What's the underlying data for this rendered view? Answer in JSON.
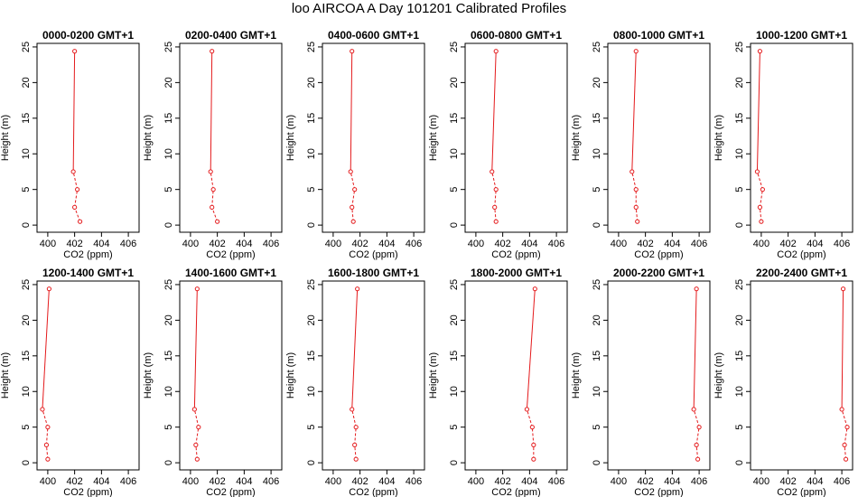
{
  "figure_title": "loo AIRCOA A  Day 101201  Calibrated Profiles",
  "colors": {
    "line": "#e41a1c",
    "axis": "#000000"
  },
  "chart_data": [
    {
      "type": "line",
      "title": "0000-0200 GMT+1",
      "xlabel": "CO2 (ppm)",
      "ylabel": "Height (m)",
      "xlim": [
        399.2,
        406.8
      ],
      "ylim": [
        -1,
        25.5
      ],
      "xticks": [
        "400",
        "402",
        "404",
        "406"
      ],
      "yticks": [
        "0",
        "5",
        "10",
        "15",
        "20",
        "25"
      ],
      "x": [
        402.4,
        402.0,
        402.2,
        401.9,
        402.0
      ],
      "y": [
        0.5,
        2.5,
        5,
        7.5,
        24.4
      ]
    },
    {
      "type": "line",
      "title": "0200-0400 GMT+1",
      "xlabel": "CO2 (ppm)",
      "ylabel": "Height (m)",
      "xlim": [
        399.2,
        406.8
      ],
      "ylim": [
        -1,
        25.5
      ],
      "xticks": [
        "400",
        "402",
        "404",
        "406"
      ],
      "yticks": [
        "0",
        "5",
        "10",
        "15",
        "20",
        "25"
      ],
      "x": [
        402.0,
        401.6,
        401.7,
        401.5,
        401.6
      ],
      "y": [
        0.5,
        2.5,
        5,
        7.5,
        24.4
      ]
    },
    {
      "type": "line",
      "title": "0400-0600 GMT+1",
      "xlabel": "CO2 (ppm)",
      "ylabel": "Height (m)",
      "xlim": [
        399.2,
        406.8
      ],
      "ylim": [
        -1,
        25.5
      ],
      "xticks": [
        "400",
        "402",
        "404",
        "406"
      ],
      "yticks": [
        "0",
        "5",
        "10",
        "15",
        "20",
        "25"
      ],
      "x": [
        401.5,
        401.4,
        401.6,
        401.3,
        401.4
      ],
      "y": [
        0.5,
        2.5,
        5,
        7.5,
        24.4
      ]
    },
    {
      "type": "line",
      "title": "0600-0800 GMT+1",
      "xlabel": "CO2 (ppm)",
      "ylabel": "Height (m)",
      "xlim": [
        399.2,
        406.8
      ],
      "ylim": [
        -1,
        25.5
      ],
      "xticks": [
        "400",
        "402",
        "404",
        "406"
      ],
      "yticks": [
        "0",
        "5",
        "10",
        "15",
        "20",
        "25"
      ],
      "x": [
        401.5,
        401.4,
        401.5,
        401.2,
        401.5
      ],
      "y": [
        0.5,
        2.5,
        5,
        7.5,
        24.4
      ]
    },
    {
      "type": "line",
      "title": "0800-1000 GMT+1",
      "xlabel": "CO2 (ppm)",
      "ylabel": "Height (m)",
      "xlim": [
        399.2,
        406.8
      ],
      "ylim": [
        -1,
        25.5
      ],
      "xticks": [
        "400",
        "402",
        "404",
        "406"
      ],
      "yticks": [
        "0",
        "5",
        "10",
        "15",
        "20",
        "25"
      ],
      "x": [
        401.4,
        401.3,
        401.3,
        401.0,
        401.3
      ],
      "y": [
        0.5,
        2.5,
        5,
        7.5,
        24.4
      ]
    },
    {
      "type": "line",
      "title": "1000-1200 GMT+1",
      "xlabel": "CO2 (ppm)",
      "ylabel": "Height (m)",
      "xlim": [
        399.2,
        406.8
      ],
      "ylim": [
        -1,
        25.5
      ],
      "xticks": [
        "400",
        "402",
        "404",
        "406"
      ],
      "yticks": [
        "0",
        "5",
        "10",
        "15",
        "20",
        "25"
      ],
      "x": [
        400.0,
        399.9,
        400.1,
        399.7,
        399.9
      ],
      "y": [
        0.5,
        2.5,
        5,
        7.5,
        24.4
      ]
    },
    {
      "type": "line",
      "title": "1200-1400 GMT+1",
      "xlabel": "CO2 (ppm)",
      "ylabel": "Height (m)",
      "xlim": [
        399.2,
        406.8
      ],
      "ylim": [
        -1,
        25.5
      ],
      "xticks": [
        "400",
        "402",
        "404",
        "406"
      ],
      "yticks": [
        "0",
        "5",
        "10",
        "15",
        "20",
        "25"
      ],
      "x": [
        400.0,
        399.9,
        400.0,
        399.6,
        400.1
      ],
      "y": [
        0.5,
        2.5,
        5,
        7.5,
        24.4
      ]
    },
    {
      "type": "line",
      "title": "1400-1600 GMT+1",
      "xlabel": "CO2 (ppm)",
      "ylabel": "Height (m)",
      "xlim": [
        399.2,
        406.8
      ],
      "ylim": [
        -1,
        25.5
      ],
      "xticks": [
        "400",
        "402",
        "404",
        "406"
      ],
      "yticks": [
        "0",
        "5",
        "10",
        "15",
        "20",
        "25"
      ],
      "x": [
        400.5,
        400.4,
        400.6,
        400.3,
        400.5
      ],
      "y": [
        0.5,
        2.5,
        5,
        7.5,
        24.4
      ]
    },
    {
      "type": "line",
      "title": "1600-1800 GMT+1",
      "xlabel": "CO2 (ppm)",
      "ylabel": "Height (m)",
      "xlim": [
        399.2,
        406.8
      ],
      "ylim": [
        -1,
        25.5
      ],
      "xticks": [
        "400",
        "402",
        "404",
        "406"
      ],
      "yticks": [
        "0",
        "5",
        "10",
        "15",
        "20",
        "25"
      ],
      "x": [
        401.7,
        401.6,
        401.7,
        401.4,
        401.8
      ],
      "y": [
        0.5,
        2.5,
        5,
        7.5,
        24.4
      ]
    },
    {
      "type": "line",
      "title": "1800-2000 GMT+1",
      "xlabel": "CO2 (ppm)",
      "ylabel": "Height (m)",
      "xlim": [
        399.2,
        406.8
      ],
      "ylim": [
        -1,
        25.5
      ],
      "xticks": [
        "400",
        "402",
        "404",
        "406"
      ],
      "yticks": [
        "0",
        "5",
        "10",
        "15",
        "20",
        "25"
      ],
      "x": [
        404.3,
        404.3,
        404.2,
        403.8,
        404.4
      ],
      "y": [
        0.5,
        2.5,
        5,
        7.5,
        24.4
      ]
    },
    {
      "type": "line",
      "title": "2000-2200 GMT+1",
      "xlabel": "CO2 (ppm)",
      "ylabel": "Height (m)",
      "xlim": [
        399.2,
        406.8
      ],
      "ylim": [
        -1,
        25.5
      ],
      "xticks": [
        "400",
        "402",
        "404",
        "406"
      ],
      "yticks": [
        "0",
        "5",
        "10",
        "15",
        "20",
        "25"
      ],
      "x": [
        405.9,
        405.8,
        406.0,
        405.6,
        405.8
      ],
      "y": [
        0.5,
        2.5,
        5,
        7.5,
        24.4
      ]
    },
    {
      "type": "line",
      "title": "2200-2400 GMT+1",
      "xlabel": "CO2 (ppm)",
      "ylabel": "Height (m)",
      "xlim": [
        399.2,
        406.8
      ],
      "ylim": [
        -1,
        25.5
      ],
      "xticks": [
        "400",
        "402",
        "404",
        "406"
      ],
      "yticks": [
        "0",
        "5",
        "10",
        "15",
        "20",
        "25"
      ],
      "x": [
        406.3,
        406.2,
        406.4,
        406.0,
        406.1
      ],
      "y": [
        0.5,
        2.5,
        5,
        7.5,
        24.4
      ]
    }
  ]
}
